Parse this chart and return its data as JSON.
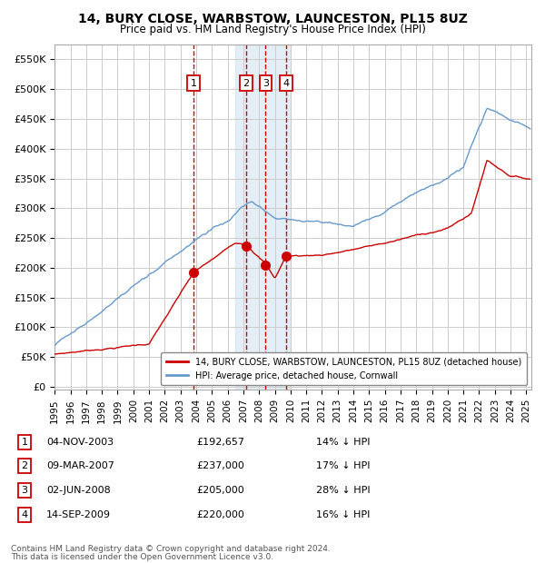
{
  "title": "14, BURY CLOSE, WARBSTOW, LAUNCESTON, PL15 8UZ",
  "subtitle": "Price paid vs. HM Land Registry's House Price Index (HPI)",
  "yticks": [
    0,
    50000,
    100000,
    150000,
    200000,
    250000,
    300000,
    350000,
    400000,
    450000,
    500000,
    550000
  ],
  "ytick_labels": [
    "£0",
    "£50K",
    "£100K",
    "£150K",
    "£200K",
    "£250K",
    "£300K",
    "£350K",
    "£400K",
    "£450K",
    "£500K",
    "£550K"
  ],
  "ylim": [
    -5000,
    575000
  ],
  "xlim_start": 1995.0,
  "xlim_end": 2025.3,
  "hpi_color": "#6699cc",
  "property_color": "#cc0000",
  "transactions": [
    {
      "num": 1,
      "date_str": "04-NOV-2003",
      "date_float": 2003.843,
      "price": 192657,
      "pct": "14%"
    },
    {
      "num": 2,
      "date_str": "09-MAR-2007",
      "date_float": 2007.186,
      "price": 237000,
      "pct": "17%"
    },
    {
      "num": 3,
      "date_str": "02-JUN-2008",
      "date_float": 2008.418,
      "price": 205000,
      "pct": "28%"
    },
    {
      "num": 4,
      "date_str": "14-SEP-2009",
      "date_float": 2009.706,
      "price": 220000,
      "pct": "16%"
    }
  ],
  "legend_property": "14, BURY CLOSE, WARBSTOW, LAUNCESTON, PL15 8UZ (detached house)",
  "legend_hpi": "HPI: Average price, detached house, Cornwall",
  "footer1": "Contains HM Land Registry data © Crown copyright and database right 2024.",
  "footer2": "This data is licensed under the Open Government Licence v3.0.",
  "shade_start": 2006.5,
  "shade_end": 2010.0,
  "background_color": "#ffffff",
  "grid_color": "#cccccc"
}
